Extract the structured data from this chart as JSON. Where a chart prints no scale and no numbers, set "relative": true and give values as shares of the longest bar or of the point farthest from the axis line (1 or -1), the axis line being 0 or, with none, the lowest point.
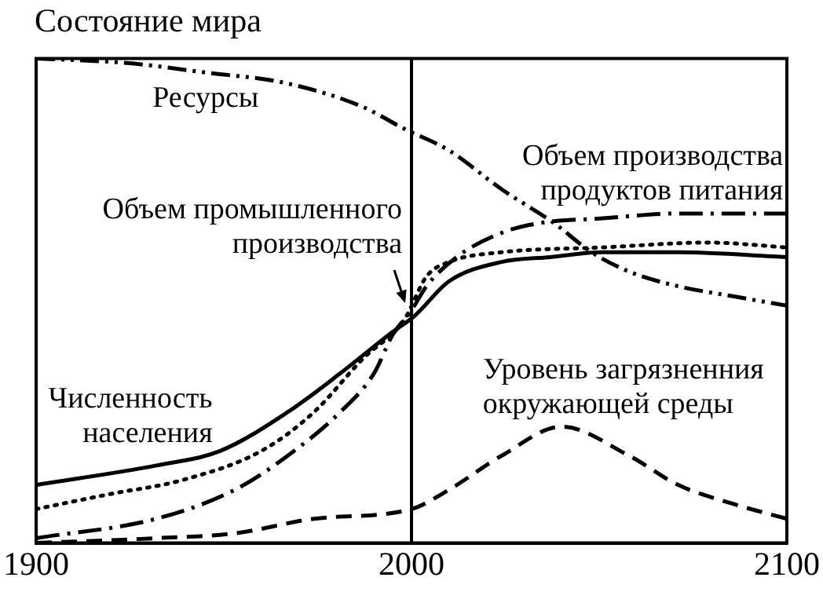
{
  "chart_data": {
    "type": "line",
    "title": "Состояние мира",
    "relative": true,
    "xlim": [
      1900,
      2100
    ],
    "xticks": [
      1900,
      2000,
      2100
    ],
    "tick_labels": "x",
    "legend": false,
    "marker": "none",
    "ref_lines": [
      {
        "axis": "x",
        "value": 2000,
        "color": "#000000",
        "line_style": "solid"
      }
    ],
    "series": [
      {
        "name": "Ресурсы",
        "color": "#000000",
        "line_style": "dash-dot-dot",
        "x": [
          1900,
          1925,
          1946,
          1966,
          1987,
          1998,
          2010,
          2024,
          2038,
          2048,
          2058,
          2071,
          2085,
          2100
        ],
        "values": [
          1.0,
          0.99,
          0.97,
          0.95,
          0.9,
          0.855,
          0.81,
          0.73,
          0.66,
          0.6,
          0.56,
          0.53,
          0.51,
          0.49
        ]
      },
      {
        "name": "Объем производства продуктов питания",
        "color": "#000000",
        "line_style": "dash-dot",
        "x": [
          1900,
          1932,
          1953,
          1967,
          1981,
          1990,
          1995,
          2000,
          2004,
          2012,
          2024,
          2034,
          2051,
          2071,
          2100
        ],
        "values": [
          0.01,
          0.05,
          0.11,
          0.18,
          0.27,
          0.35,
          0.43,
          0.48,
          0.53,
          0.59,
          0.64,
          0.66,
          0.67,
          0.68,
          0.68
        ]
      },
      {
        "name": "Объем промышленного производства",
        "color": "#000000",
        "line_style": "dotted",
        "x": [
          1900,
          1919,
          1939,
          1960,
          1974,
          1987,
          1998,
          2004,
          2010,
          2024,
          2051,
          2079,
          2100
        ],
        "values": [
          0.07,
          0.1,
          0.13,
          0.19,
          0.27,
          0.38,
          0.46,
          0.55,
          0.58,
          0.6,
          0.61,
          0.62,
          0.61
        ]
      },
      {
        "name": "Численность населения",
        "color": "#000000",
        "line_style": "solid",
        "x": [
          1900,
          1932,
          1949,
          1967,
          1981,
          1994,
          2001,
          2010,
          2024,
          2037,
          2051,
          2071,
          2100
        ],
        "values": [
          0.12,
          0.16,
          0.19,
          0.27,
          0.35,
          0.43,
          0.47,
          0.54,
          0.58,
          0.59,
          0.6,
          0.6,
          0.59
        ]
      },
      {
        "name": "Уровень загрязненния окружающей среды",
        "color": "#000000",
        "line_style": "dashed",
        "x": [
          1900,
          1932,
          1953,
          1974,
          2000,
          2010,
          2024,
          2040,
          2058,
          2071,
          2086,
          2100
        ],
        "values": [
          0,
          0.01,
          0.02,
          0.05,
          0.07,
          0.11,
          0.18,
          0.24,
          0.18,
          0.12,
          0.08,
          0.05
        ]
      }
    ]
  }
}
